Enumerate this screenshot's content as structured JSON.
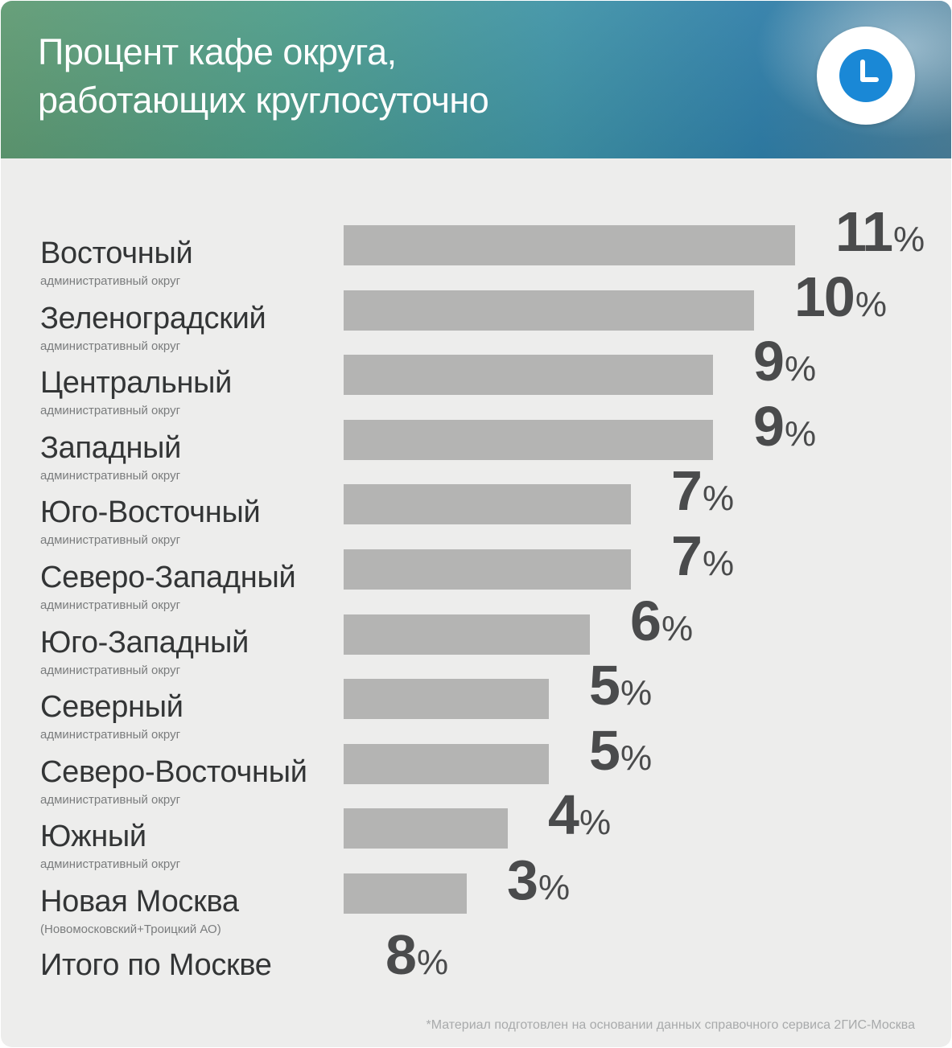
{
  "header": {
    "title_line1": "Процент кафе округа,",
    "title_line2": "работающих круглосуточно",
    "icon": "clock-icon",
    "icon_color": "#1a88d6"
  },
  "chart_data": {
    "type": "bar",
    "orientation": "horizontal",
    "unit": "%",
    "bar_color": "#b4b4b3",
    "categories": [
      {
        "label": "Восточный",
        "sublabel": "административный округ"
      },
      {
        "label": "Зеленоградский",
        "sublabel": "административный округ"
      },
      {
        "label": "Центральный",
        "sublabel": "административный округ"
      },
      {
        "label": "Западный",
        "sublabel": "административный округ"
      },
      {
        "label": "Юго-Восточный",
        "sublabel": "административный округ"
      },
      {
        "label": "Северо-Западный",
        "sublabel": "административный округ"
      },
      {
        "label": "Юго-Западный",
        "sublabel": "административный округ"
      },
      {
        "label": "Северный",
        "sublabel": "административный округ"
      },
      {
        "label": "Северо-Восточный",
        "sublabel": "административный округ"
      },
      {
        "label": "Южный",
        "sublabel": "административный округ"
      },
      {
        "label": "Новая Москва",
        "sublabel": "(Новомосковский+Троицкий АО)"
      }
    ],
    "values": [
      11,
      10,
      9,
      9,
      7,
      7,
      6,
      5,
      5,
      4,
      3
    ],
    "total": {
      "label": "Итого по Москве",
      "value": 8
    }
  },
  "footnote": "*Материал подготовлен на основании данных справочного сервиса 2ГИС-Москва"
}
